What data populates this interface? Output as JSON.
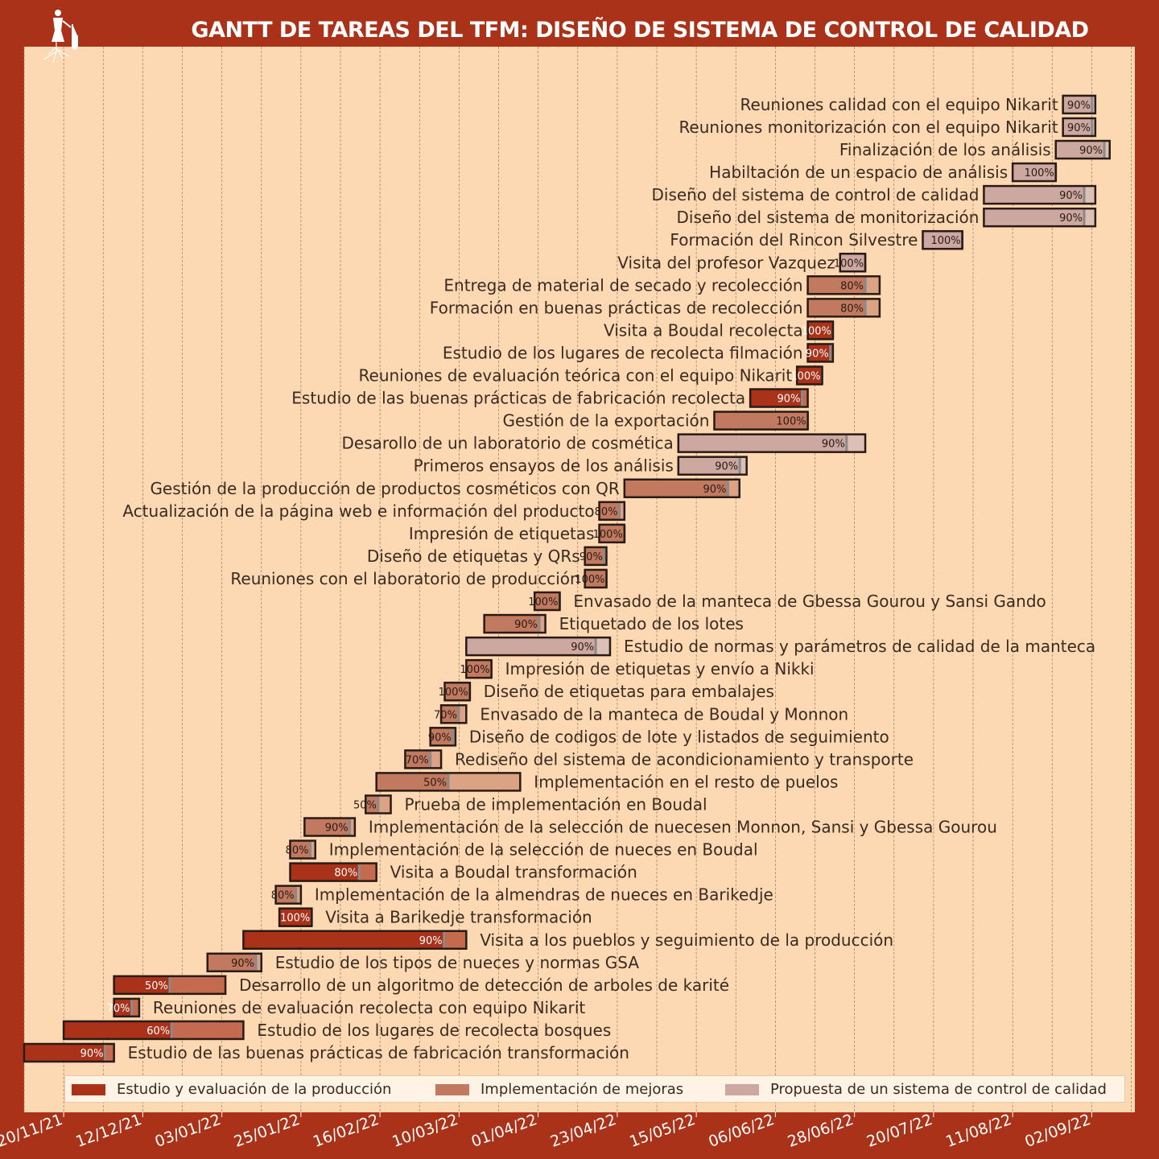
{
  "colors": {
    "background": "#A93219",
    "plot_background": "#FCD9B3",
    "grid": "#9C7A5E",
    "estudio": "#A93219",
    "implementacion": "#C17A60",
    "propuesta": "#CDA8A0"
  },
  "logo": {
    "icon": "tree-figure-icon"
  },
  "chart_data": {
    "type": "gantt",
    "title": "GANTT DE TAREAS DEL TFM: DISEÑO DE SISTEMA DE CONTROL DE CALIDAD",
    "x_ticks": [
      "2021-11-20",
      "2021-12-12",
      "2022-01-03",
      "2022-01-25",
      "2022-02-16",
      "2022-03-10",
      "2022-04-01",
      "2022-04-23",
      "2022-05-15",
      "2022-06-06",
      "2022-06-28",
      "2022-07-20",
      "2022-08-11",
      "2022-09-02"
    ],
    "x_tick_labels": [
      "20/11/21",
      "12/12/21",
      "03/01/22",
      "25/01/22",
      "16/02/22",
      "10/03/22",
      "01/04/22",
      "23/04/22",
      "15/05/22",
      "06/06/22",
      "28/06/22",
      "20/07/22",
      "11/08/22",
      "02/09/22"
    ],
    "xlim": [
      "2021-11-09",
      "2022-09-14"
    ],
    "grid": true,
    "legend": [
      {
        "key": "estudio",
        "label": "Estudio y evaluación de la producción"
      },
      {
        "key": "implementacion",
        "label": "Implementación de mejoras"
      },
      {
        "key": "propuesta",
        "label": "Propuesta de un sistema de control de calidad"
      }
    ],
    "tasks": [
      {
        "name": "Estudio de las buenas prácticas de fabricación transformación",
        "start": "2021-11-09",
        "end": "2021-12-04",
        "progress": "90%",
        "category": "estudio"
      },
      {
        "name": "Estudio de los lugares de recolecta bosques",
        "start": "2021-11-20",
        "end": "2022-01-09",
        "progress": "60%",
        "category": "estudio"
      },
      {
        "name": "Reuniones de evaluación recolecta con equipo Nikarit",
        "start": "2021-12-04",
        "end": "2021-12-11",
        "progress": "70%",
        "category": "estudio"
      },
      {
        "name": "Desarrollo de un algoritmo de detección de arboles de karité",
        "start": "2021-12-04",
        "end": "2022-01-04",
        "progress": "50%",
        "category": "estudio"
      },
      {
        "name": "Estudio de los tipos de nueces y normas GSA",
        "start": "2021-12-30",
        "end": "2022-01-14",
        "progress": "90%",
        "category": "implementacion"
      },
      {
        "name": "Visita a los pueblos y seguimiento de la producción",
        "start": "2022-01-09",
        "end": "2022-03-12",
        "progress": "90%",
        "category": "estudio"
      },
      {
        "name": "Visita a Barikedje transformación",
        "start": "2022-01-19",
        "end": "2022-01-28",
        "progress": "100%",
        "category": "estudio"
      },
      {
        "name": "Implementación de la almendras de nueces en Barikedje",
        "start": "2022-01-18",
        "end": "2022-01-25",
        "progress": "80%",
        "category": "implementacion"
      },
      {
        "name": "Visita a Boudal transformación",
        "start": "2022-01-22",
        "end": "2022-02-15",
        "progress": "80%",
        "category": "estudio"
      },
      {
        "name": "Implementación de la selección de nueces en Boudal",
        "start": "2022-01-22",
        "end": "2022-01-29",
        "progress": "80%",
        "category": "implementacion"
      },
      {
        "name": "Implementación de la selección de nuecesen Monnon, Sansi y Gbessa Gourou",
        "start": "2022-01-26",
        "end": "2022-02-09",
        "progress": "90%",
        "category": "implementacion"
      },
      {
        "name": "Prueba de implementación en Boudal",
        "start": "2022-02-12",
        "end": "2022-02-19",
        "progress": "50%",
        "category": "implementacion"
      },
      {
        "name": "Implementación en el resto de puelos",
        "start": "2022-02-15",
        "end": "2022-03-27",
        "progress": "50%",
        "category": "implementacion"
      },
      {
        "name": "Rediseño del sistema de acondicionamiento y transporte",
        "start": "2022-02-23",
        "end": "2022-03-05",
        "progress": "70%",
        "category": "implementacion"
      },
      {
        "name": "Diseño de codigos de lote y listados de seguimiento",
        "start": "2022-03-02",
        "end": "2022-03-09",
        "progress": "90%",
        "category": "implementacion"
      },
      {
        "name": "Envasado de la manteca de Boudal y Monnon",
        "start": "2022-03-05",
        "end": "2022-03-12",
        "progress": "70%",
        "category": "implementacion"
      },
      {
        "name": "Diseño de etiquetas para embalajes",
        "start": "2022-03-06",
        "end": "2022-03-13",
        "progress": "100%",
        "category": "implementacion"
      },
      {
        "name": "Impresión de etiquetas y envío a Nikki",
        "start": "2022-03-12",
        "end": "2022-03-19",
        "progress": "100%",
        "category": "implementacion"
      },
      {
        "name": "Estudio de normas y parámetros de calidad de la manteca",
        "start": "2022-03-12",
        "end": "2022-04-21",
        "progress": "90%",
        "category": "propuesta"
      },
      {
        "name": "Etiquetado de los lotes",
        "start": "2022-03-17",
        "end": "2022-04-03",
        "progress": "90%",
        "category": "implementacion"
      },
      {
        "name": "Envasado de la manteca de Gbessa Gourou y Sansi Gando",
        "start": "2022-03-31",
        "end": "2022-04-07",
        "progress": "100%",
        "category": "implementacion"
      },
      {
        "name": "Reuniones con el laboratorio de producción",
        "start": "2022-04-14",
        "end": "2022-04-20",
        "progress": "100%",
        "category": "implementacion"
      },
      {
        "name": "Diseño de etiquetas y QRs",
        "start": "2022-04-14",
        "end": "2022-04-20",
        "progress": "90%",
        "category": "implementacion"
      },
      {
        "name": "Impresión de etiquetas",
        "start": "2022-04-18",
        "end": "2022-04-25",
        "progress": "100%",
        "category": "implementacion"
      },
      {
        "name": "Actualización de la página web e información del producto",
        "start": "2022-04-18",
        "end": "2022-04-25",
        "progress": "80%",
        "category": "implementacion"
      },
      {
        "name": "Gestión de la producción de productos cosméticos con QR",
        "start": "2022-04-25",
        "end": "2022-05-27",
        "progress": "90%",
        "category": "implementacion"
      },
      {
        "name": "Primeros ensayos de los análisis",
        "start": "2022-05-10",
        "end": "2022-05-29",
        "progress": "90%",
        "category": "propuesta"
      },
      {
        "name": "Desarollo de un laboratorio de cosmética",
        "start": "2022-05-10",
        "end": "2022-07-01",
        "progress": "90%",
        "category": "propuesta"
      },
      {
        "name": "Gestión de la exportación",
        "start": "2022-05-20",
        "end": "2022-06-15",
        "progress": "100%",
        "category": "implementacion"
      },
      {
        "name": "Estudio de las buenas prácticas de fabricación recolecta",
        "start": "2022-05-30",
        "end": "2022-06-15",
        "progress": "90%",
        "category": "estudio"
      },
      {
        "name": "Reuniones de evaluación teórica con el equipo Nikarit",
        "start": "2022-06-12",
        "end": "2022-06-19",
        "progress": "100%",
        "category": "estudio"
      },
      {
        "name": "Estudio de los lugares de recolecta filmación",
        "start": "2022-06-15",
        "end": "2022-06-22",
        "progress": "90%",
        "category": "estudio"
      },
      {
        "name": "Visita a Boudal recolecta",
        "start": "2022-06-15",
        "end": "2022-06-22",
        "progress": "100%",
        "category": "estudio"
      },
      {
        "name": "Formación en buenas prácticas de recolección",
        "start": "2022-06-15",
        "end": "2022-07-05",
        "progress": "80%",
        "category": "implementacion"
      },
      {
        "name": "Entrega de material de secado y recolección",
        "start": "2022-06-15",
        "end": "2022-07-05",
        "progress": "80%",
        "category": "implementacion"
      },
      {
        "name": "Visita del profesor Vazquez",
        "start": "2022-06-24",
        "end": "2022-07-01",
        "progress": "100%",
        "category": "propuesta"
      },
      {
        "name": "Formación del Rincon Silvestre",
        "start": "2022-07-17",
        "end": "2022-07-28",
        "progress": "100%",
        "category": "propuesta"
      },
      {
        "name": "Diseño del sistema de monitorización",
        "start": "2022-08-03",
        "end": "2022-09-03",
        "progress": "90%",
        "category": "propuesta"
      },
      {
        "name": "Diseño del sistema de control de calidad",
        "start": "2022-08-03",
        "end": "2022-09-03",
        "progress": "90%",
        "category": "propuesta"
      },
      {
        "name": "Habiltación de un espacio de análisis",
        "start": "2022-08-11",
        "end": "2022-08-23",
        "progress": "100%",
        "category": "propuesta"
      },
      {
        "name": "Finalización de los análisis",
        "start": "2022-08-23",
        "end": "2022-09-07",
        "progress": "90%",
        "category": "propuesta"
      },
      {
        "name": "Reuniones monitorización con el equipo Nikarit",
        "start": "2022-08-25",
        "end": "2022-09-03",
        "progress": "90%",
        "category": "propuesta"
      },
      {
        "name": "Reuniones calidad con el equipo Nikarit",
        "start": "2022-08-25",
        "end": "2022-09-03",
        "progress": "90%",
        "category": "propuesta"
      }
    ]
  }
}
